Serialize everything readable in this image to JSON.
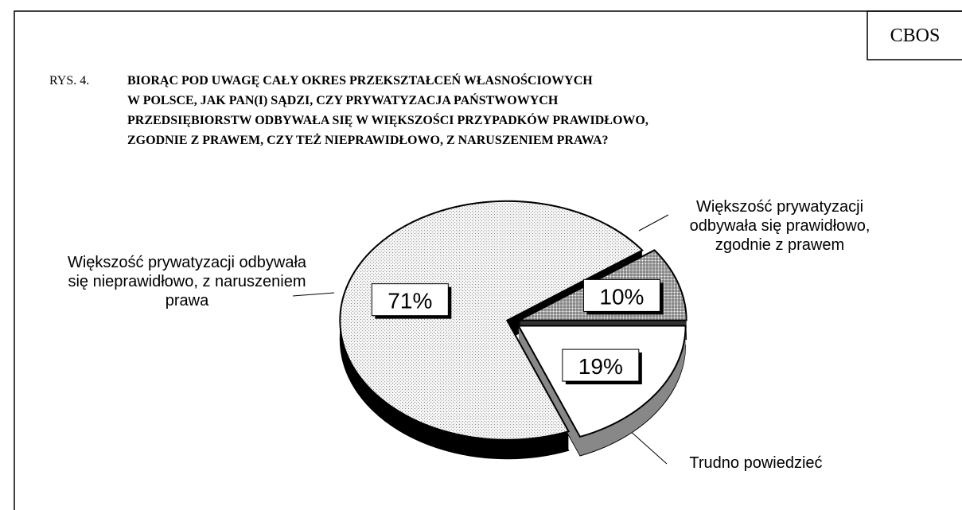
{
  "source": "CBOS",
  "chart_data": {
    "type": "pie",
    "figure_label": "RYS. 4.",
    "title": [
      "BIORĄC POD UWAGĘ CAŁY OKRES PRZEKSZTAŁCEŃ WŁASNOŚCIOWYCH",
      "W POLSCE, JAK PAN(I) SĄDZI, CZY PRYWATYZACJA PAŃSTWOWYCH",
      "PRZEDSIĘBIORSTW ODBYWAŁA SIĘ W WIĘKSZOŚCI PRZYPADKÓW PRAWIDŁOWO,",
      "ZGODNIE Z PRAWEM, CZY TEŻ NIEPRAWIDŁOWO, Z NARUSZENIEM PRAWA?"
    ],
    "categories": [
      "Większość prywatyzacji odbywała się nieprawidłowo, z naruszeniem prawa",
      "Większość prywatyzacji odbywała się prawidłowo, zgodnie z prawem",
      "Trudno powiedzieć"
    ],
    "values": [
      71,
      10,
      19
    ],
    "value_labels": [
      "71%",
      "10%",
      "19%"
    ],
    "colors": [
      "#eeeeee",
      "#bbbbbb",
      "#ffffff"
    ]
  }
}
